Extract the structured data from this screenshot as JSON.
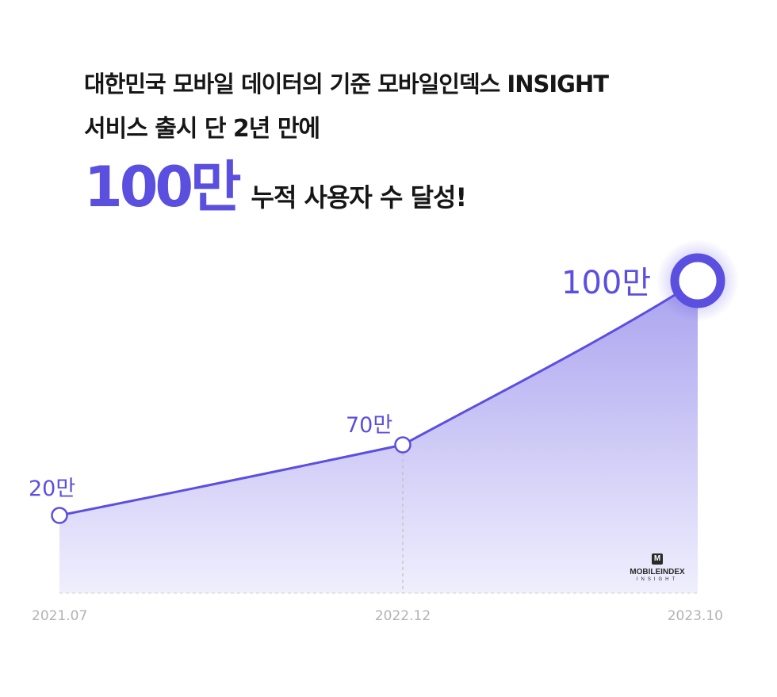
{
  "headline": {
    "line1": "대한민국 모바일 데이터의 기준 모바일인덱스 INSIGHT",
    "line2": "서비스 출시 단 2년 만에",
    "highlight": "100만",
    "line3_rest": "누적 사용자 수 달성!"
  },
  "logo": {
    "mark": "M",
    "name": "MOBILEINDEX",
    "sub": "INSIGHT"
  },
  "colors": {
    "accent": "#5b4fe0",
    "area_top": "#aaa3ef",
    "area_bottom": "#f0effd",
    "tick": "#b3b3b3"
  },
  "chart_data": {
    "type": "area",
    "x": [
      "2021.07",
      "2022.12",
      "2023.10"
    ],
    "y": [
      20,
      70,
      100
    ],
    "labels": [
      "20만",
      "70만",
      "100만"
    ],
    "ylim": [
      0,
      100
    ],
    "title": "",
    "xlabel": "",
    "ylabel": "",
    "grid": false
  }
}
